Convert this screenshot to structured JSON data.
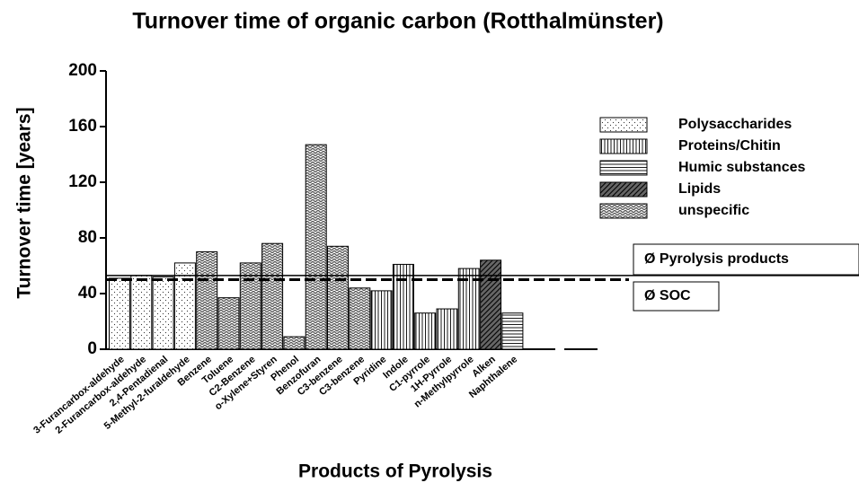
{
  "chart_data": {
    "type": "bar",
    "title": "Turnover time of organic carbon (Rotthalmünster)",
    "x_label": "Products of Pyrolysis",
    "y_label": "Turnover time [years]",
    "categories": [
      "3-Furancarbox-aldehyde",
      "2-Furancarbox-aldehyde",
      "2,4-Pentadienal",
      "5-Methyl-2-furaldehyde",
      "Benzene",
      "Toluene",
      "C2-Benzene",
      "o-Xylene+Styren",
      "Phenol",
      "Benzofuran",
      "C3-benzene",
      "C3-benzene",
      "Pyridine",
      "Indole",
      "C1-pyrrole",
      "1H-Pyrrole",
      "n-Methylpyrrole",
      "Alken",
      "Naphthalene"
    ],
    "series": [
      {
        "name": "Polysaccharides",
        "pattern": "dots",
        "color": "#000000",
        "values": [
          51,
          53,
          52,
          62,
          null,
          null,
          null,
          null,
          null,
          null,
          null,
          null,
          null,
          null,
          null,
          null,
          null,
          null,
          null
        ]
      },
      {
        "name": "Proteins/Chitin",
        "pattern": "vertical",
        "color": "#000000",
        "values": [
          null,
          null,
          null,
          null,
          null,
          null,
          null,
          null,
          null,
          null,
          null,
          null,
          42,
          61,
          26,
          29,
          58,
          null,
          null
        ]
      },
      {
        "name": "Humic substances",
        "pattern": "horizontal",
        "color": "#000000",
        "values": [
          null,
          null,
          null,
          null,
          null,
          null,
          null,
          null,
          null,
          null,
          null,
          null,
          null,
          null,
          null,
          null,
          null,
          null,
          26
        ]
      },
      {
        "name": "Lipids",
        "pattern": "diagonal",
        "color": "#000000",
        "values": [
          null,
          null,
          null,
          null,
          null,
          null,
          null,
          null,
          null,
          null,
          null,
          null,
          null,
          null,
          null,
          null,
          null,
          64,
          null
        ]
      },
      {
        "name": "unspecific",
        "pattern": "crosshatch",
        "color": "#000000",
        "values": [
          null,
          null,
          null,
          null,
          70,
          37,
          62,
          76,
          9,
          147,
          74,
          44,
          null,
          null,
          null,
          null,
          null,
          null,
          null
        ]
      }
    ],
    "reference_lines": [
      {
        "label": "Ø Pyrolysis products",
        "value": 53,
        "style": "solid"
      },
      {
        "label": "Ø SOC",
        "value": 50,
        "style": "dashed"
      }
    ],
    "ylim": [
      0,
      200
    ],
    "yticks": [
      0,
      40,
      80,
      120,
      160,
      200
    ],
    "legend": "right"
  }
}
